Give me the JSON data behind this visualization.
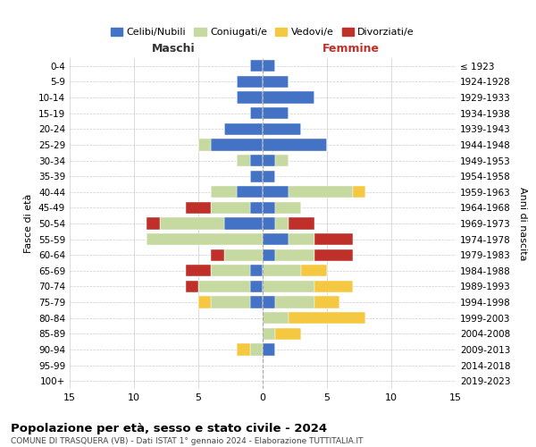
{
  "age_groups": [
    "0-4",
    "5-9",
    "10-14",
    "15-19",
    "20-24",
    "25-29",
    "30-34",
    "35-39",
    "40-44",
    "45-49",
    "50-54",
    "55-59",
    "60-64",
    "65-69",
    "70-74",
    "75-79",
    "80-84",
    "85-89",
    "90-94",
    "95-99",
    "100+"
  ],
  "birth_years": [
    "2019-2023",
    "2014-2018",
    "2009-2013",
    "2004-2008",
    "1999-2003",
    "1994-1998",
    "1989-1993",
    "1984-1988",
    "1979-1983",
    "1974-1978",
    "1969-1973",
    "1964-1968",
    "1959-1963",
    "1954-1958",
    "1949-1953",
    "1944-1948",
    "1939-1943",
    "1934-1938",
    "1929-1933",
    "1924-1928",
    "≤ 1923"
  ],
  "colors": {
    "celibi": "#4472c4",
    "coniugati": "#c5d9a0",
    "vedovi": "#f5c842",
    "divorziati": "#c0302a"
  },
  "legend_labels": [
    "Celibi/Nubili",
    "Coniugati/e",
    "Vedovi/e",
    "Divorziati/e"
  ],
  "males": {
    "celibi": [
      1,
      2,
      2,
      1,
      3,
      4,
      1,
      1,
      2,
      1,
      3,
      0,
      0,
      1,
      1,
      1,
      0,
      0,
      0,
      0,
      0
    ],
    "coniugati": [
      0,
      0,
      0,
      0,
      0,
      1,
      1,
      0,
      2,
      3,
      5,
      9,
      3,
      3,
      4,
      3,
      0,
      0,
      1,
      0,
      0
    ],
    "vedovi": [
      0,
      0,
      0,
      0,
      0,
      0,
      0,
      0,
      0,
      0,
      0,
      0,
      0,
      0,
      0,
      1,
      0,
      0,
      1,
      0,
      0
    ],
    "divorziati": [
      0,
      0,
      0,
      0,
      0,
      0,
      0,
      0,
      0,
      2,
      1,
      0,
      1,
      2,
      1,
      0,
      0,
      0,
      0,
      0,
      0
    ]
  },
  "females": {
    "nubili": [
      1,
      2,
      4,
      2,
      3,
      5,
      1,
      1,
      2,
      1,
      1,
      2,
      1,
      0,
      0,
      1,
      0,
      0,
      1,
      0,
      0
    ],
    "coniugate": [
      0,
      0,
      0,
      0,
      0,
      0,
      1,
      0,
      5,
      2,
      1,
      2,
      3,
      3,
      4,
      3,
      2,
      1,
      0,
      0,
      0
    ],
    "vedove": [
      0,
      0,
      0,
      0,
      0,
      0,
      0,
      0,
      1,
      0,
      0,
      0,
      0,
      2,
      3,
      2,
      6,
      2,
      0,
      0,
      0
    ],
    "divorziate": [
      0,
      0,
      0,
      0,
      0,
      0,
      0,
      0,
      0,
      0,
      2,
      3,
      3,
      0,
      0,
      0,
      0,
      0,
      0,
      0,
      0
    ]
  },
  "xlim": 15,
  "title": "Popolazione per età, sesso e stato civile - 2024",
  "subtitle": "COMUNE DI TRASQUERA (VB) - Dati ISTAT 1° gennaio 2024 - Elaborazione TUTTITALIA.IT",
  "xlabel_left": "Maschi",
  "xlabel_right": "Femmine",
  "ylabel_left": "Fasce di età",
  "ylabel_right": "Anni di nascita",
  "background_color": "#ffffff"
}
